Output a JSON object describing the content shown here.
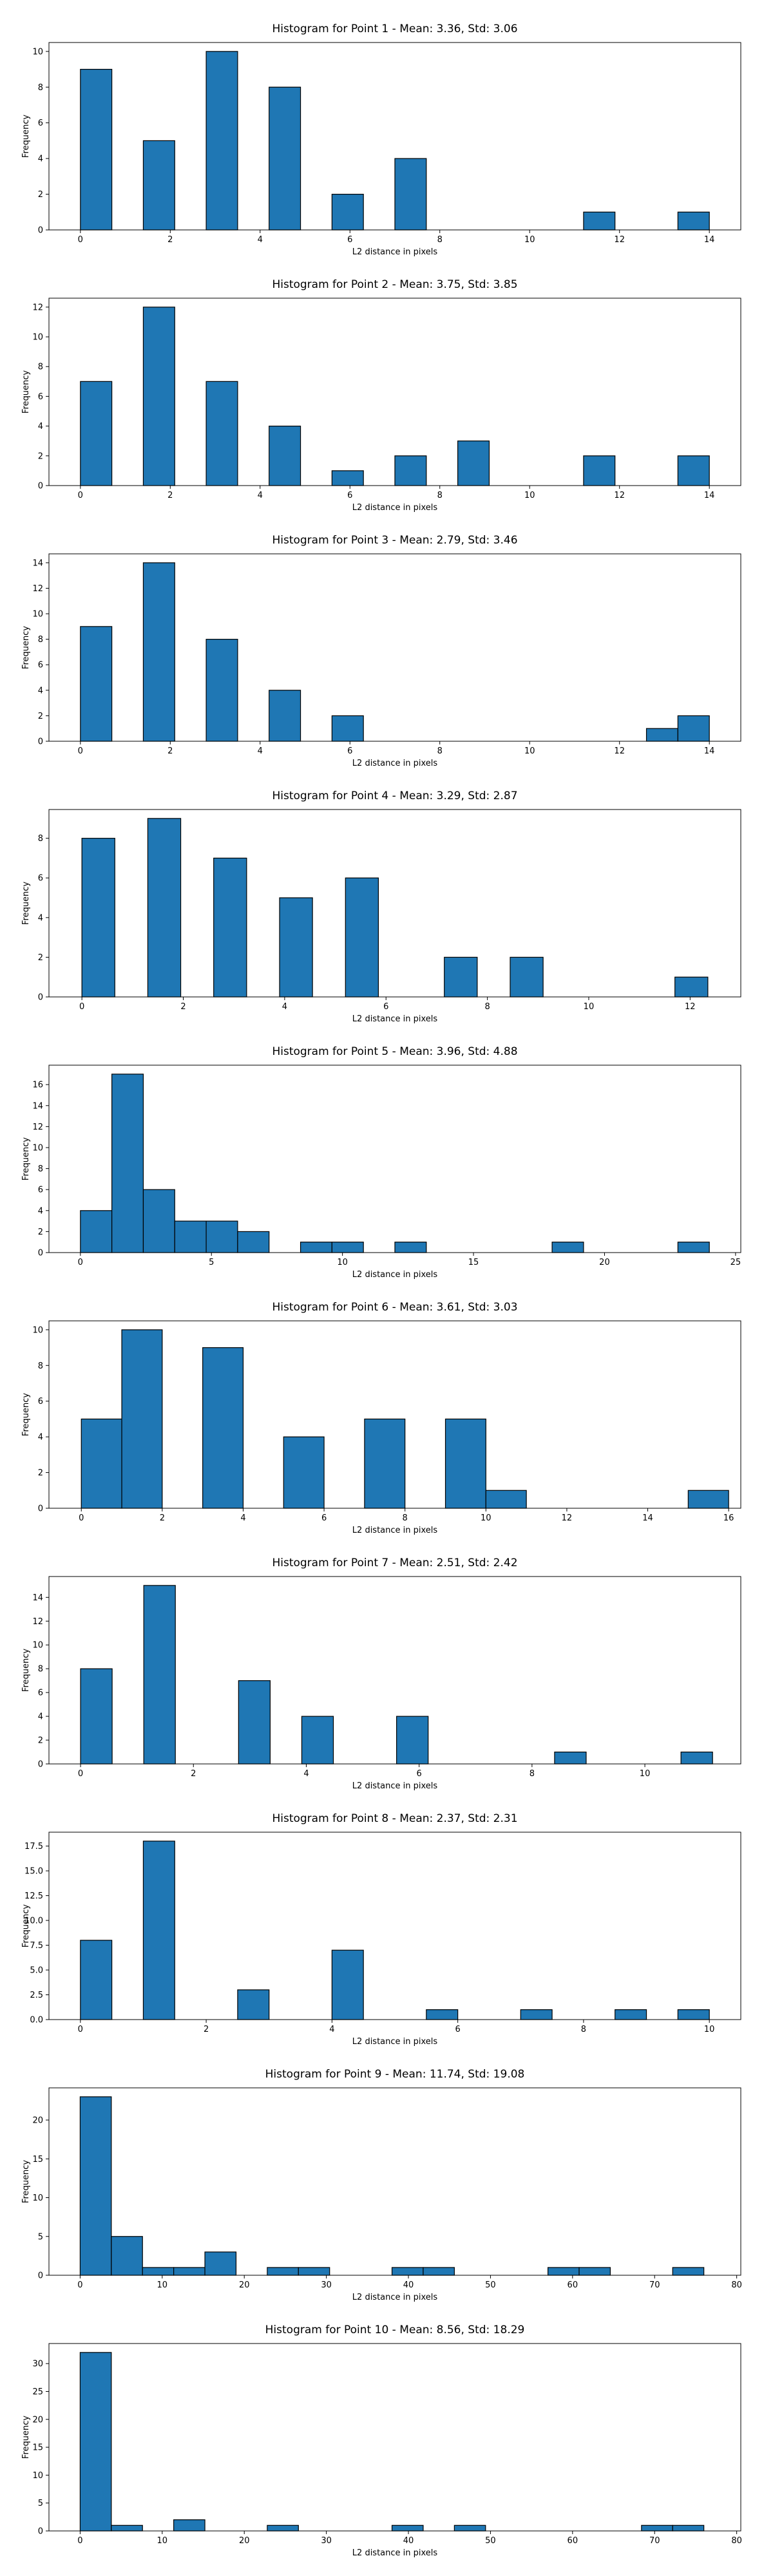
{
  "chart_data": [
    {
      "type": "bar",
      "title": "Histogram for Point 1 - Mean: 3.36, Std: 3.06",
      "xlabel": "L2 distance in pixels",
      "ylabel": "Frequency",
      "xlim": [
        -0.7,
        14.7
      ],
      "ylim": [
        0,
        10.5
      ],
      "xticks": [
        0,
        2,
        4,
        6,
        8,
        10,
        12,
        14
      ],
      "yticks": [
        0,
        2,
        4,
        6,
        8,
        10
      ],
      "bars": [
        {
          "x0": 0.0,
          "x1": 0.7,
          "value": 9
        },
        {
          "x0": 1.4,
          "x1": 2.1,
          "value": 5
        },
        {
          "x0": 2.8,
          "x1": 3.5,
          "value": 10
        },
        {
          "x0": 4.2,
          "x1": 4.9,
          "value": 8
        },
        {
          "x0": 5.6,
          "x1": 6.3,
          "value": 2
        },
        {
          "x0": 7.0,
          "x1": 7.7,
          "value": 4
        },
        {
          "x0": 11.2,
          "x1": 11.9,
          "value": 1
        },
        {
          "x0": 13.3,
          "x1": 14.0,
          "value": 1
        }
      ]
    },
    {
      "type": "bar",
      "title": "Histogram for Point 2 - Mean: 3.75, Std: 3.85",
      "xlabel": "L2 distance in pixels",
      "ylabel": "Frequency",
      "xlim": [
        -0.7,
        14.7
      ],
      "ylim": [
        0,
        12.6
      ],
      "xticks": [
        0,
        2,
        4,
        6,
        8,
        10,
        12,
        14
      ],
      "yticks": [
        0,
        2,
        4,
        6,
        8,
        10,
        12
      ],
      "bars": [
        {
          "x0": 0.0,
          "x1": 0.7,
          "value": 7
        },
        {
          "x0": 1.4,
          "x1": 2.1,
          "value": 12
        },
        {
          "x0": 2.8,
          "x1": 3.5,
          "value": 7
        },
        {
          "x0": 4.2,
          "x1": 4.9,
          "value": 4
        },
        {
          "x0": 5.6,
          "x1": 6.3,
          "value": 1
        },
        {
          "x0": 7.0,
          "x1": 7.7,
          "value": 2
        },
        {
          "x0": 8.4,
          "x1": 9.1,
          "value": 3
        },
        {
          "x0": 11.2,
          "x1": 11.9,
          "value": 2
        },
        {
          "x0": 13.3,
          "x1": 14.0,
          "value": 2
        }
      ]
    },
    {
      "type": "bar",
      "title": "Histogram for Point 3 - Mean: 2.79, Std: 3.46",
      "xlabel": "L2 distance in pixels",
      "ylabel": "Frequency",
      "xlim": [
        -0.7,
        14.7
      ],
      "ylim": [
        0,
        14.7
      ],
      "xticks": [
        0,
        2,
        4,
        6,
        8,
        10,
        12,
        14
      ],
      "yticks": [
        0,
        2,
        4,
        6,
        8,
        10,
        12,
        14
      ],
      "bars": [
        {
          "x0": 0.0,
          "x1": 0.7,
          "value": 9
        },
        {
          "x0": 1.4,
          "x1": 2.1,
          "value": 14
        },
        {
          "x0": 2.8,
          "x1": 3.5,
          "value": 8
        },
        {
          "x0": 4.2,
          "x1": 4.9,
          "value": 4
        },
        {
          "x0": 5.6,
          "x1": 6.3,
          "value": 2
        },
        {
          "x0": 12.6,
          "x1": 13.3,
          "value": 1
        },
        {
          "x0": 13.3,
          "x1": 14.0,
          "value": 2
        }
      ]
    },
    {
      "type": "bar",
      "title": "Histogram for Point 4 - Mean: 3.29, Std: 2.87",
      "xlabel": "L2 distance in pixels",
      "ylabel": "Frequency",
      "xlim": [
        -0.65,
        13.0
      ],
      "ylim": [
        0,
        9.45
      ],
      "xticks": [
        0,
        2,
        4,
        6,
        8,
        10,
        12
      ],
      "yticks": [
        0,
        2,
        4,
        6,
        8
      ],
      "bars": [
        {
          "x0": 0.0,
          "x1": 0.65,
          "value": 8
        },
        {
          "x0": 1.3,
          "x1": 1.95,
          "value": 9
        },
        {
          "x0": 2.6,
          "x1": 3.25,
          "value": 7
        },
        {
          "x0": 3.9,
          "x1": 4.55,
          "value": 5
        },
        {
          "x0": 5.2,
          "x1": 5.85,
          "value": 6
        },
        {
          "x0": 7.15,
          "x1": 7.8,
          "value": 2
        },
        {
          "x0": 8.45,
          "x1": 9.1,
          "value": 2
        },
        {
          "x0": 11.7,
          "x1": 12.35,
          "value": 1
        }
      ]
    },
    {
      "type": "bar",
      "title": "Histogram for Point 5 - Mean: 3.96, Std: 4.88",
      "xlabel": "L2 distance in pixels",
      "ylabel": "Frequency",
      "xlim": [
        -1.2,
        25.2
      ],
      "ylim": [
        0,
        17.85
      ],
      "xticks": [
        0,
        5,
        10,
        15,
        20,
        25
      ],
      "yticks": [
        0,
        2,
        4,
        6,
        8,
        10,
        12,
        14,
        16
      ],
      "bars": [
        {
          "x0": 0.0,
          "x1": 1.2,
          "value": 4
        },
        {
          "x0": 1.2,
          "x1": 2.4,
          "value": 17
        },
        {
          "x0": 2.4,
          "x1": 3.6,
          "value": 6
        },
        {
          "x0": 3.6,
          "x1": 4.8,
          "value": 3
        },
        {
          "x0": 4.8,
          "x1": 6.0,
          "value": 3
        },
        {
          "x0": 6.0,
          "x1": 7.2,
          "value": 2
        },
        {
          "x0": 8.4,
          "x1": 9.6,
          "value": 1
        },
        {
          "x0": 9.6,
          "x1": 10.8,
          "value": 1
        },
        {
          "x0": 12.0,
          "x1": 13.2,
          "value": 1
        },
        {
          "x0": 18.0,
          "x1": 19.2,
          "value": 1
        },
        {
          "x0": 22.8,
          "x1": 24.0,
          "value": 1
        }
      ]
    },
    {
      "type": "bar",
      "title": "Histogram for Point 6 - Mean: 3.61, Std: 3.03",
      "xlabel": "L2 distance in pixels",
      "ylabel": "Frequency",
      "xlim": [
        -0.8,
        16.3
      ],
      "ylim": [
        0,
        10.5
      ],
      "xticks": [
        0,
        2,
        4,
        6,
        8,
        10,
        12,
        14,
        16
      ],
      "yticks": [
        0,
        2,
        4,
        6,
        8,
        10
      ],
      "bars": [
        {
          "x0": 0.0,
          "x1": 1.0,
          "value": 5
        },
        {
          "x0": 1.0,
          "x1": 2.0,
          "value": 10
        },
        {
          "x0": 3.0,
          "x1": 4.0,
          "value": 9
        },
        {
          "x0": 5.0,
          "x1": 6.0,
          "value": 4
        },
        {
          "x0": 7.0,
          "x1": 8.0,
          "value": 5
        },
        {
          "x0": 9.0,
          "x1": 10.0,
          "value": 5
        },
        {
          "x0": 10.0,
          "x1": 11.0,
          "value": 1
        },
        {
          "x0": 15.0,
          "x1": 16.0,
          "value": 1
        }
      ]
    },
    {
      "type": "bar",
      "title": "Histogram for Point 7 - Mean: 2.51, Std: 2.42",
      "xlabel": "L2 distance in pixels",
      "ylabel": "Frequency",
      "xlim": [
        -0.56,
        11.7
      ],
      "ylim": [
        0,
        15.75
      ],
      "xticks": [
        0,
        2,
        4,
        6,
        8,
        10
      ],
      "yticks": [
        0,
        2,
        4,
        6,
        8,
        10,
        12,
        14
      ],
      "bars": [
        {
          "x0": 0.0,
          "x1": 0.56,
          "value": 8
        },
        {
          "x0": 1.12,
          "x1": 1.68,
          "value": 15
        },
        {
          "x0": 2.8,
          "x1": 3.36,
          "value": 7
        },
        {
          "x0": 3.92,
          "x1": 4.48,
          "value": 4
        },
        {
          "x0": 5.6,
          "x1": 6.16,
          "value": 4
        },
        {
          "x0": 8.4,
          "x1": 8.96,
          "value": 1
        },
        {
          "x0": 10.64,
          "x1": 11.2,
          "value": 1
        }
      ]
    },
    {
      "type": "bar",
      "title": "Histogram for Point 8 - Mean: 2.37, Std: 2.31",
      "xlabel": "L2 distance in pixels",
      "ylabel": "Frequency",
      "xlim": [
        -0.5,
        10.5
      ],
      "ylim": [
        0,
        18.9
      ],
      "xticks": [
        0,
        2,
        4,
        6,
        8,
        10
      ],
      "yticks": [
        0.0,
        2.5,
        5.0,
        7.5,
        10.0,
        12.5,
        15.0,
        17.5
      ],
      "ytick_labels": [
        "0.0",
        "2.5",
        "5.0",
        "7.5",
        "10.0",
        "12.5",
        "15.0",
        "17.5"
      ],
      "bars": [
        {
          "x0": 0.0,
          "x1": 0.5,
          "value": 8
        },
        {
          "x0": 1.0,
          "x1": 1.5,
          "value": 18
        },
        {
          "x0": 2.5,
          "x1": 3.0,
          "value": 3
        },
        {
          "x0": 4.0,
          "x1": 4.5,
          "value": 7
        },
        {
          "x0": 5.5,
          "x1": 6.0,
          "value": 1
        },
        {
          "x0": 7.0,
          "x1": 7.5,
          "value": 1
        },
        {
          "x0": 8.5,
          "x1": 9.0,
          "value": 1
        },
        {
          "x0": 9.5,
          "x1": 10.0,
          "value": 1
        }
      ]
    },
    {
      "type": "bar",
      "title": "Histogram for Point 9 - Mean: 11.74, Std: 19.08",
      "xlabel": "L2 distance in pixels",
      "ylabel": "Frequency",
      "xlim": [
        -3.8,
        80.5
      ],
      "ylim": [
        0,
        24.15
      ],
      "xticks": [
        0,
        10,
        20,
        30,
        40,
        50,
        60,
        70,
        80
      ],
      "yticks": [
        0,
        5,
        10,
        15,
        20
      ],
      "bars": [
        {
          "x0": 0.0,
          "x1": 3.8,
          "value": 23
        },
        {
          "x0": 3.8,
          "x1": 7.6,
          "value": 5
        },
        {
          "x0": 7.6,
          "x1": 11.4,
          "value": 1
        },
        {
          "x0": 11.4,
          "x1": 15.2,
          "value": 1
        },
        {
          "x0": 15.2,
          "x1": 19.0,
          "value": 3
        },
        {
          "x0": 22.8,
          "x1": 26.6,
          "value": 1
        },
        {
          "x0": 26.6,
          "x1": 30.4,
          "value": 1
        },
        {
          "x0": 38.0,
          "x1": 41.8,
          "value": 1
        },
        {
          "x0": 41.8,
          "x1": 45.6,
          "value": 1
        },
        {
          "x0": 57.0,
          "x1": 60.8,
          "value": 1
        },
        {
          "x0": 60.8,
          "x1": 64.6,
          "value": 1
        },
        {
          "x0": 72.2,
          "x1": 76.0,
          "value": 1
        }
      ]
    },
    {
      "type": "bar",
      "title": "Histogram for Point 10 - Mean: 8.56, Std: 18.29",
      "xlabel": "L2 distance in pixels",
      "ylabel": "Frequency",
      "xlim": [
        -3.8,
        80.5
      ],
      "ylim": [
        0,
        33.6
      ],
      "xticks": [
        0,
        10,
        20,
        30,
        40,
        50,
        60,
        70,
        80
      ],
      "yticks": [
        0,
        5,
        10,
        15,
        20,
        25,
        30
      ],
      "bars": [
        {
          "x0": 0.0,
          "x1": 3.8,
          "value": 32
        },
        {
          "x0": 3.8,
          "x1": 7.6,
          "value": 1
        },
        {
          "x0": 11.4,
          "x1": 15.2,
          "value": 2
        },
        {
          "x0": 22.8,
          "x1": 26.6,
          "value": 1
        },
        {
          "x0": 38.0,
          "x1": 41.8,
          "value": 1
        },
        {
          "x0": 45.6,
          "x1": 49.4,
          "value": 1
        },
        {
          "x0": 68.4,
          "x1": 72.2,
          "value": 1
        },
        {
          "x0": 72.2,
          "x1": 76.0,
          "value": 1
        }
      ]
    }
  ]
}
